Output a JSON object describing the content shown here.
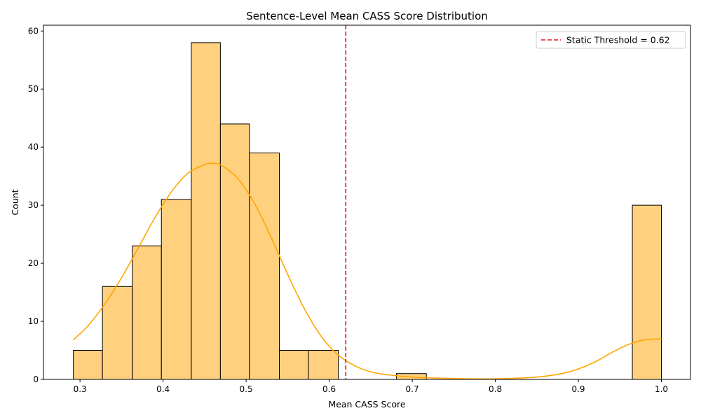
{
  "chart_data": {
    "type": "bar",
    "title": "Sentence-Level Mean CASS Score Distribution",
    "xlabel": "Mean CASS Score",
    "ylabel": "Count",
    "xlim": [
      0.256,
      1.035
    ],
    "ylim": [
      0,
      61
    ],
    "xticks": [
      0.3,
      0.4,
      0.5,
      0.6,
      0.7,
      0.8,
      0.9,
      1.0
    ],
    "xtick_labels": [
      "0.3",
      "0.4",
      "0.5",
      "0.6",
      "0.7",
      "0.8",
      "0.9",
      "1.0"
    ],
    "yticks": [
      0,
      10,
      20,
      30,
      40,
      50,
      60
    ],
    "ytick_labels": [
      "0",
      "10",
      "20",
      "30",
      "40",
      "50",
      "60"
    ],
    "bins": [
      {
        "x0": 0.292,
        "x1": 0.327,
        "count": 5
      },
      {
        "x0": 0.327,
        "x1": 0.363,
        "count": 16
      },
      {
        "x0": 0.363,
        "x1": 0.398,
        "count": 23
      },
      {
        "x0": 0.398,
        "x1": 0.434,
        "count": 31
      },
      {
        "x0": 0.434,
        "x1": 0.469,
        "count": 58
      },
      {
        "x0": 0.469,
        "x1": 0.504,
        "count": 44
      },
      {
        "x0": 0.504,
        "x1": 0.54,
        "count": 39
      },
      {
        "x0": 0.54,
        "x1": 0.575,
        "count": 5
      },
      {
        "x0": 0.575,
        "x1": 0.611,
        "count": 5
      },
      {
        "x0": 0.611,
        "x1": 0.646,
        "count": 0
      },
      {
        "x0": 0.646,
        "x1": 0.681,
        "count": 0
      },
      {
        "x0": 0.681,
        "x1": 0.717,
        "count": 1
      },
      {
        "x0": 0.717,
        "x1": 0.752,
        "count": 0
      },
      {
        "x0": 0.752,
        "x1": 0.788,
        "count": 0
      },
      {
        "x0": 0.788,
        "x1": 0.823,
        "count": 0
      },
      {
        "x0": 0.823,
        "x1": 0.858,
        "count": 0
      },
      {
        "x0": 0.858,
        "x1": 0.894,
        "count": 0
      },
      {
        "x0": 0.894,
        "x1": 0.929,
        "count": 0
      },
      {
        "x0": 0.929,
        "x1": 0.965,
        "count": 0
      },
      {
        "x0": 0.965,
        "x1": 1.0,
        "count": 30
      }
    ],
    "kde": {
      "x": [
        0.292,
        0.31,
        0.33,
        0.35,
        0.37,
        0.39,
        0.41,
        0.43,
        0.45,
        0.46,
        0.47,
        0.49,
        0.51,
        0.53,
        0.55,
        0.57,
        0.59,
        0.61,
        0.63,
        0.65,
        0.67,
        0.7,
        0.75,
        0.8,
        0.85,
        0.88,
        0.9,
        0.92,
        0.94,
        0.96,
        0.98,
        1.0
      ],
      "y": [
        6.8,
        9.3,
        13.0,
        17.5,
        22.6,
        27.8,
        32.3,
        35.5,
        37.0,
        37.2,
        36.9,
        34.6,
        30.3,
        24.5,
        18.1,
        12.2,
        7.5,
        4.3,
        2.4,
        1.3,
        0.8,
        0.4,
        0.15,
        0.1,
        0.4,
        1.0,
        1.8,
        3.0,
        4.6,
        6.0,
        6.8,
        7.0
      ]
    },
    "threshold": {
      "x": 0.62,
      "label": "Static Threshold = 0.62",
      "color": "#e8121a"
    },
    "colors": {
      "bar_fill": "#ffd17f",
      "bar_edge": "#000000",
      "kde_line": "#ffa500"
    },
    "legend_position": "upper-right",
    "grid": false
  }
}
